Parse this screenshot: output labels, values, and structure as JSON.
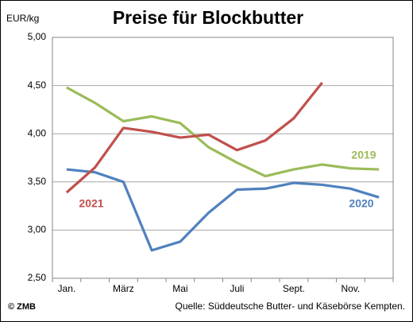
{
  "chart_data": {
    "type": "line",
    "title": "Preise für Blockbutter",
    "y_label": "EUR/kg",
    "source": "Quelle: Süddeutsche Butter- und Käsebörse Kempten.",
    "copyright": "© ZMB",
    "categories": [
      "Jan.",
      null,
      "März",
      null,
      "Mai",
      null,
      "Juli",
      null,
      "Sept.",
      null,
      "Nov.",
      null
    ],
    "ylim": [
      2.5,
      5.0
    ],
    "yticks": [
      {
        "value": 2.5,
        "label": "2,50"
      },
      {
        "value": 3.0,
        "label": "3,00"
      },
      {
        "value": 3.5,
        "label": "3,50"
      },
      {
        "value": 4.0,
        "label": "4,00"
      },
      {
        "value": 4.5,
        "label": "4,50"
      },
      {
        "value": 5.0,
        "label": "5,00"
      }
    ],
    "grid": true,
    "series": [
      {
        "name": "2019",
        "color": "#9bbb59",
        "values": [
          4.48,
          4.32,
          4.13,
          4.18,
          4.11,
          3.86,
          3.7,
          3.56,
          3.63,
          3.68,
          3.64,
          3.63
        ]
      },
      {
        "name": "2020",
        "color": "#4f81bd",
        "values": [
          3.63,
          3.6,
          3.5,
          2.79,
          2.88,
          3.18,
          3.42,
          3.43,
          3.49,
          3.47,
          3.43,
          3.34
        ]
      },
      {
        "name": "2021",
        "color": "#c0504d",
        "values": [
          3.39,
          3.65,
          4.06,
          4.02,
          3.96,
          3.99,
          3.83,
          3.93,
          4.16,
          4.53,
          null,
          null
        ]
      }
    ]
  }
}
